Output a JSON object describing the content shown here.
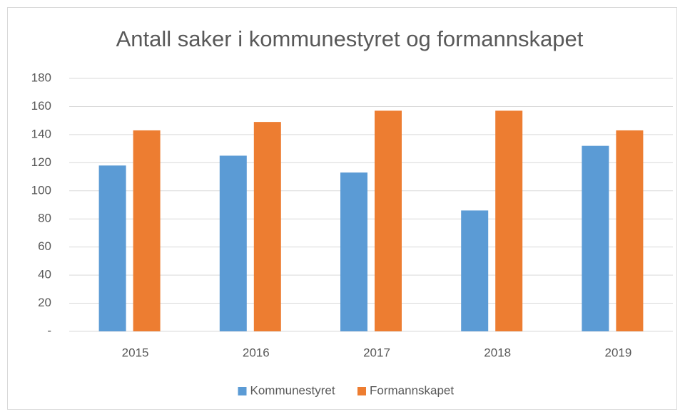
{
  "chart_data": {
    "type": "bar",
    "title": "Antall saker i kommunestyret og formannskapet",
    "categories": [
      "2015",
      "2016",
      "2017",
      "2018",
      "2019"
    ],
    "series": [
      {
        "name": "Kommunestyret",
        "color": "#5b9bd5",
        "values": [
          118,
          125,
          113,
          86,
          132
        ]
      },
      {
        "name": "Formannskapet",
        "color": "#ed7d31",
        "values": [
          143,
          149,
          157,
          157,
          143
        ]
      }
    ],
    "ylim": [
      0,
      180
    ],
    "yticks": [
      {
        "value": 0,
        "label": "-"
      },
      20,
      40,
      60,
      80,
      100,
      120,
      140,
      160,
      180
    ],
    "grid": true,
    "legend": "bottom"
  }
}
